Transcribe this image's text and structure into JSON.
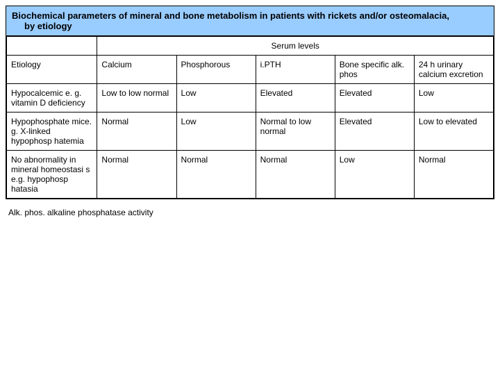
{
  "title_line1": "Biochemical parameters of mineral and bone metabolism in patients with rickets and/or osteomalacia,",
  "title_line2": "by etiology",
  "serum_header": "Serum levels",
  "columns": [
    "Etiology",
    "Calcium",
    "Phosphorous",
    "i.PTH",
    "Bone specific alk. phos",
    "24 h urinary calcium excretion"
  ],
  "rows": [
    [
      "Hypocalcemic e. g. vitamin D deficiency",
      "Low to low normal",
      "Low",
      "Elevated",
      "Elevated",
      "Low"
    ],
    [
      "Hypophosphate mice. g. X-linked hypophosp hatemia",
      "Normal",
      "Low",
      "Normal to low normal",
      "Elevated",
      "Low to elevated"
    ],
    [
      "No abnormality in mineral homeostasi s e.g. hypophosp hatasia",
      "Normal",
      "Normal",
      "Normal",
      "Low",
      "Normal"
    ]
  ],
  "footnote": "Alk. phos. alkaline phosphatase activity",
  "colors": {
    "header_bg": "#99ccff",
    "border": "#000000",
    "background": "#ffffff"
  },
  "typography": {
    "font_family": "Arial, sans-serif",
    "title_fontsize": 13,
    "cell_fontsize": 12
  }
}
